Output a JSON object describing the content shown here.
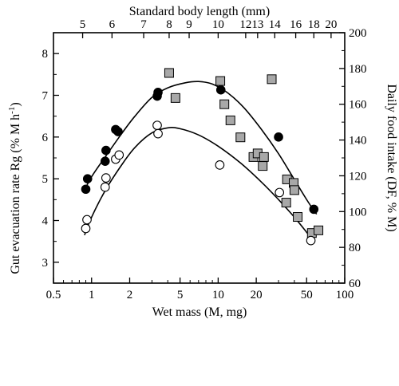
{
  "chart_data": {
    "type": "scatter",
    "top_axis_label": "Standard body length (mm)",
    "xlabel": "Wet mass (M, mg)",
    "ylabel_left": "Gut evacuation rate Rg (% M h",
    "ylabel_left_sup": "-1",
    "ylabel_left_close": ")",
    "ylabel_right": "Daily food intake (DF, % M)",
    "x_scale": "log",
    "xlim": [
      0.5,
      100
    ],
    "x_ticks": [
      0.5,
      1,
      2,
      5,
      10,
      20,
      50,
      100
    ],
    "x_tick_labels": [
      "0.5",
      "1",
      "2",
      "5",
      "10",
      "20",
      "50",
      "100"
    ],
    "top_ticks": [
      {
        "label": "5",
        "mass": 0.85
      },
      {
        "label": "6",
        "mass": 1.45
      },
      {
        "label": "8",
        "mass": 4.1
      },
      {
        "label": "9",
        "mass": 5.9
      },
      {
        "label": "10",
        "mass": 10.0
      },
      {
        "label": "12",
        "mass": 16.5
      },
      {
        "label": "13",
        "mass": 20.5
      },
      {
        "label": "14",
        "mass": 28.0
      },
      {
        "label": "16",
        "mass": 41.0
      },
      {
        "label": "18",
        "mass": 57.0
      },
      {
        "label": "20",
        "mass": 78.0
      },
      {
        "label": "7",
        "mass": 2.58
      }
    ],
    "ylim_left": [
      2.5,
      8.5
    ],
    "y_ticks_left": [
      3,
      4,
      5,
      6,
      7,
      8
    ],
    "ylim_right": [
      60,
      200
    ],
    "y_ticks_right": [
      60,
      80,
      100,
      120,
      140,
      160,
      180,
      200
    ],
    "series": [
      {
        "marker": "filled-circle",
        "axis": "left",
        "points": [
          [
            0.9,
            4.75
          ],
          [
            0.93,
            5.0
          ],
          [
            1.28,
            5.42
          ],
          [
            1.3,
            5.68
          ],
          [
            1.55,
            6.18
          ],
          [
            1.62,
            6.13
          ],
          [
            3.3,
            6.98
          ],
          [
            3.35,
            7.07
          ],
          [
            10.5,
            7.13
          ],
          [
            30.0,
            6.0
          ],
          [
            57.0,
            4.27
          ]
        ],
        "fit": [
          [
            0.88,
            4.72
          ],
          [
            1.0,
            5.05
          ],
          [
            1.3,
            5.55
          ],
          [
            1.7,
            6.05
          ],
          [
            2.2,
            6.5
          ],
          [
            3.0,
            6.95
          ],
          [
            4.0,
            7.18
          ],
          [
            5.5,
            7.3
          ],
          [
            7.0,
            7.33
          ],
          [
            9.0,
            7.27
          ],
          [
            12.0,
            7.05
          ],
          [
            16.0,
            6.7
          ],
          [
            22.0,
            6.18
          ],
          [
            30.0,
            5.6
          ],
          [
            40.0,
            4.98
          ],
          [
            52.0,
            4.42
          ],
          [
            60.0,
            4.15
          ]
        ]
      },
      {
        "marker": "open-circle",
        "axis": "left",
        "points": [
          [
            0.9,
            3.81
          ],
          [
            0.92,
            4.02
          ],
          [
            1.28,
            4.8
          ],
          [
            1.3,
            5.02
          ],
          [
            1.55,
            5.47
          ],
          [
            1.65,
            5.57
          ],
          [
            3.3,
            6.28
          ],
          [
            3.35,
            6.08
          ],
          [
            10.3,
            5.33
          ],
          [
            30.5,
            4.67
          ],
          [
            54.0,
            3.52
          ]
        ],
        "fit": [
          [
            0.88,
            3.65
          ],
          [
            1.0,
            4.08
          ],
          [
            1.3,
            4.75
          ],
          [
            1.7,
            5.3
          ],
          [
            2.2,
            5.75
          ],
          [
            3.0,
            6.1
          ],
          [
            4.0,
            6.22
          ],
          [
            5.0,
            6.2
          ],
          [
            7.0,
            6.05
          ],
          [
            10.0,
            5.78
          ],
          [
            15.0,
            5.38
          ],
          [
            22.0,
            4.92
          ],
          [
            30.0,
            4.5
          ],
          [
            40.0,
            4.08
          ],
          [
            50.0,
            3.72
          ],
          [
            58.0,
            3.48
          ]
        ]
      },
      {
        "marker": "gray-square",
        "axis": "right",
        "points": [
          [
            4.1,
            177.5
          ],
          [
            4.6,
            163.5
          ],
          [
            10.4,
            173
          ],
          [
            11.2,
            160
          ],
          [
            12.5,
            151
          ],
          [
            15.0,
            141.5
          ],
          [
            19.0,
            130.5
          ],
          [
            20.5,
            132.5
          ],
          [
            22.5,
            125.5
          ],
          [
            23.0,
            130.5
          ],
          [
            26.5,
            174
          ],
          [
            34.5,
            105
          ],
          [
            35.0,
            118
          ],
          [
            39.5,
            116
          ],
          [
            40.0,
            112
          ],
          [
            42.5,
            97
          ],
          [
            55.0,
            88
          ],
          [
            62.0,
            89.5
          ]
        ]
      }
    ]
  }
}
